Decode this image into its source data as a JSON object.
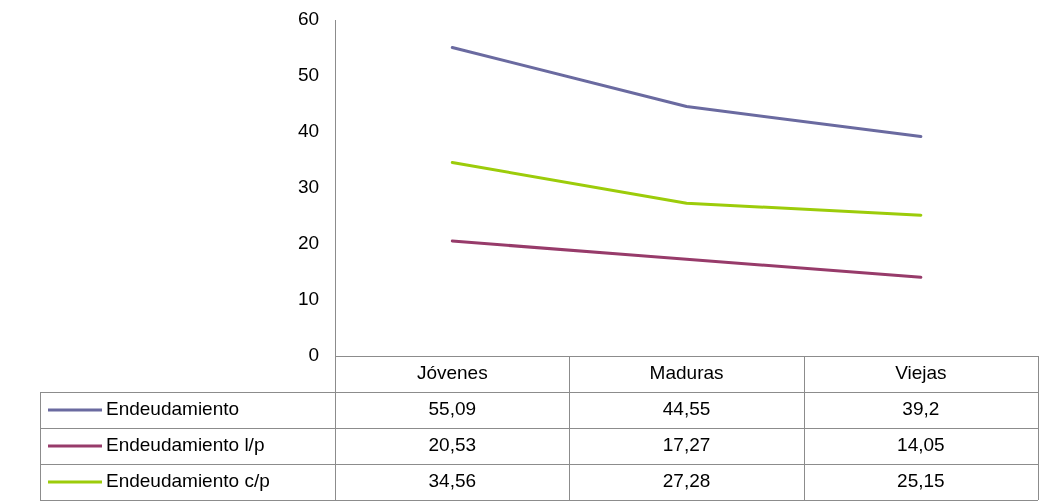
{
  "chart_data": {
    "type": "line",
    "categories": [
      "Jóvenes",
      "Maduras",
      "Viejas"
    ],
    "series": [
      {
        "name": "Endeudamiento",
        "color": "#6a6aa0",
        "values": [
          55.09,
          44.55,
          39.2
        ],
        "value_labels": [
          "55,09",
          "44,55",
          "39,2"
        ]
      },
      {
        "name": "Endeudamiento l/p",
        "color": "#973b6a",
        "values": [
          20.53,
          17.27,
          14.05
        ],
        "value_labels": [
          "20,53",
          "17,27",
          "14,05"
        ]
      },
      {
        "name": "Endeudamiento c/p",
        "color": "#9ccc0a",
        "values": [
          34.56,
          27.28,
          25.15
        ],
        "value_labels": [
          "34,56",
          "27,28",
          "25,15"
        ]
      }
    ],
    "ylim": [
      0,
      60
    ],
    "yticks": [
      0,
      10,
      20,
      30,
      40,
      50,
      60
    ],
    "grid": false,
    "marker": "none",
    "line_style": "solid",
    "legend": "bottom"
  }
}
